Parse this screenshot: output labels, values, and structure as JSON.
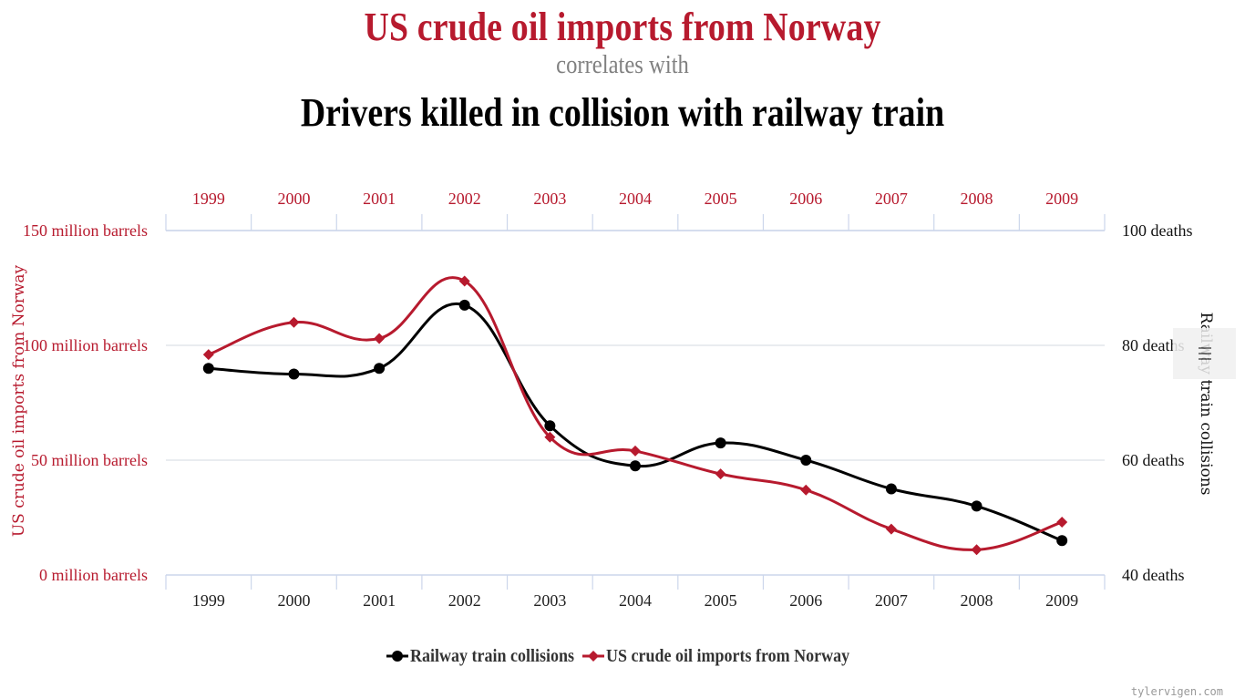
{
  "titles": {
    "main": "US crude oil imports from Norway",
    "sub": "correlates with",
    "second": "Drivers killed in collision with railway train"
  },
  "credit": "tylervigen.com",
  "colors": {
    "red": "#b71a2e",
    "black": "#000000",
    "grid": "#e2e6ec",
    "axis": "#ccd6eb"
  },
  "chart_data": {
    "type": "line",
    "categories": [
      "1999",
      "2000",
      "2001",
      "2002",
      "2003",
      "2004",
      "2005",
      "2006",
      "2007",
      "2008",
      "2009"
    ],
    "series": [
      {
        "name": "Railway train collisions",
        "axis": "right",
        "color": "#000000",
        "marker": "circle",
        "values": [
          76,
          75,
          76,
          87,
          66,
          59,
          63,
          60,
          55,
          52,
          46
        ]
      },
      {
        "name": "US crude oil imports from Norway",
        "axis": "left",
        "color": "#b71a2e",
        "marker": "diamond",
        "values": [
          96,
          110,
          103,
          128,
          60,
          54,
          44,
          37,
          20,
          11,
          23
        ]
      }
    ],
    "left_axis": {
      "title": "US crude oil imports from Norway",
      "range": [
        0,
        150
      ],
      "ticks": [
        {
          "value": 0,
          "label": "0 million barrels"
        },
        {
          "value": 50,
          "label": "50 million barrels"
        },
        {
          "value": 100,
          "label": "100 million barrels"
        },
        {
          "value": 150,
          "label": "150 million barrels"
        }
      ]
    },
    "right_axis": {
      "title": "Railway train collisions",
      "range": [
        40,
        100
      ],
      "ticks": [
        {
          "value": 40,
          "label": "40 deaths"
        },
        {
          "value": 60,
          "label": "60 deaths"
        },
        {
          "value": 80,
          "label": "80 deaths"
        },
        {
          "value": 100,
          "label": "100 deaths"
        }
      ]
    },
    "legend": [
      "Railway train collisions",
      "US crude oil imports from Norway"
    ]
  }
}
